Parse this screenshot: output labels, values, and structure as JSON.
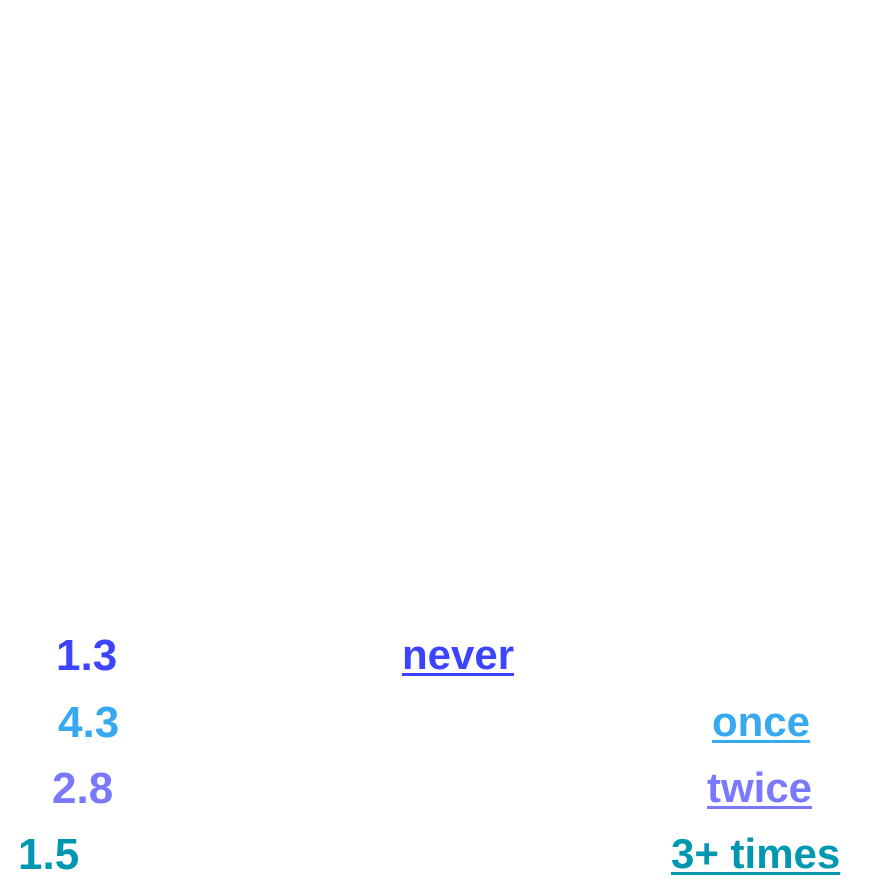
{
  "chart_data": {
    "type": "pictogram",
    "total_icons": 10,
    "icons_per_row": 5,
    "categories": [
      "never",
      "once",
      "twice",
      "3+ times"
    ],
    "values": [
      1.3,
      4.3,
      2.8,
      1.5
    ],
    "colors": [
      "#3d44ff",
      "#36a9f0",
      "#7a78ff",
      "#0097b0"
    ],
    "remainder_color": "#000000",
    "value_labels": [
      "1.3",
      "4.3",
      "2.8",
      "1.5"
    ]
  }
}
